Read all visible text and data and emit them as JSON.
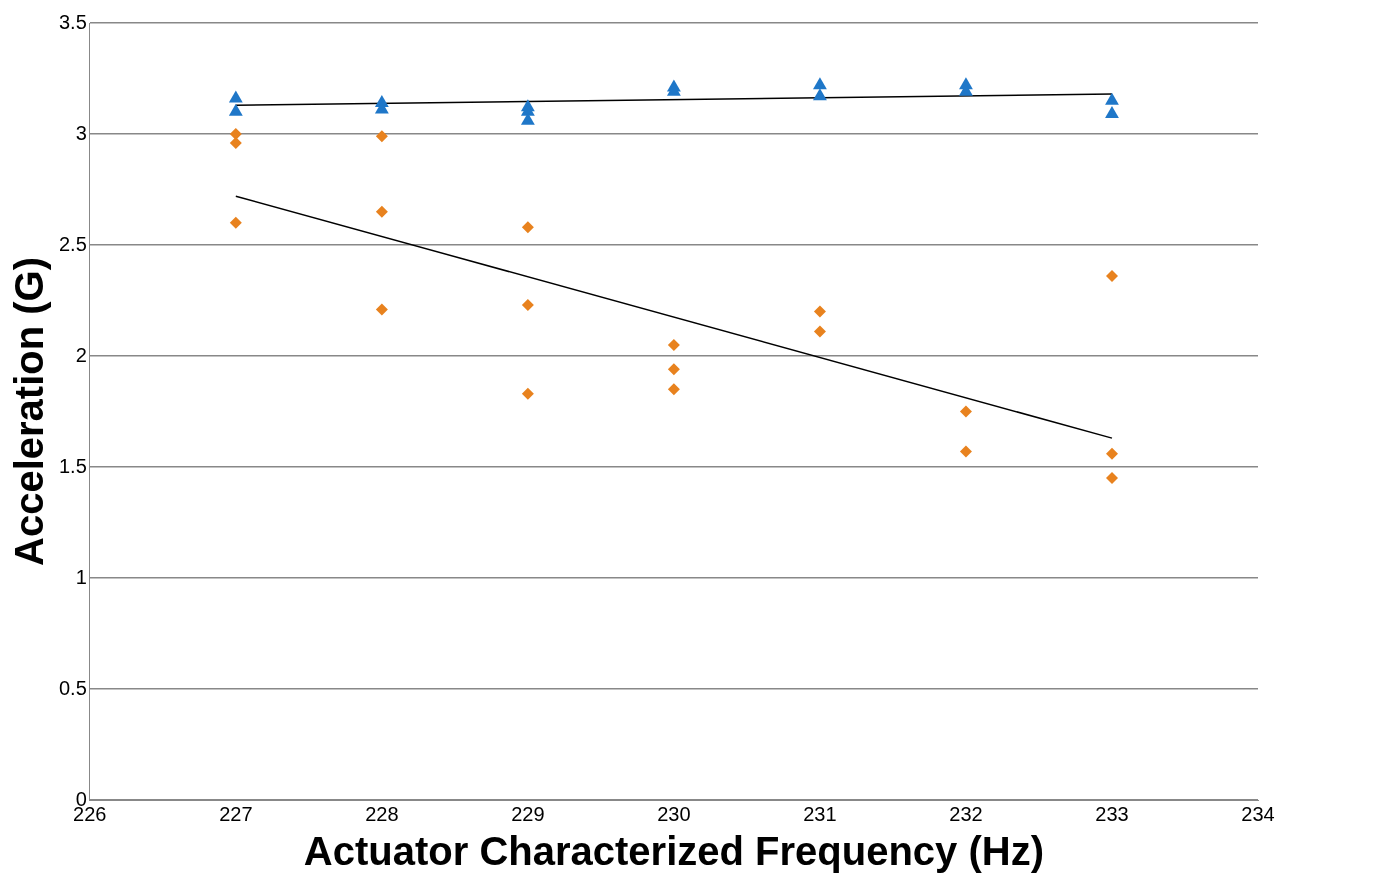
{
  "chart_data": {
    "type": "scatter",
    "xlabel": "Actuator Characterized Frequency (Hz)",
    "ylabel": "Acceleration (G)",
    "xlim": [
      226,
      234
    ],
    "xticks": [
      226,
      227,
      228,
      229,
      230,
      231,
      232,
      233,
      234
    ],
    "ylim": [
      0,
      3.5
    ],
    "yticks": [
      0,
      0.5,
      1,
      1.5,
      2,
      2.5,
      3,
      3.5
    ],
    "grid": "y",
    "series": [
      {
        "type": "scatter",
        "marker": "diamond",
        "color": "#e8821e",
        "x": [
          227,
          227,
          227,
          228,
          228,
          228,
          229,
          229,
          229,
          230,
          230,
          230,
          231,
          231,
          232,
          232,
          233,
          233,
          233
        ],
        "values": [
          3.0,
          2.96,
          2.6,
          2.99,
          2.65,
          2.21,
          2.58,
          2.23,
          1.83,
          2.05,
          1.94,
          1.85,
          2.2,
          2.11,
          1.75,
          1.57,
          2.36,
          1.56,
          1.45
        ]
      },
      {
        "type": "scatter",
        "marker": "triangle",
        "color": "#1f77c8",
        "x": [
          227,
          227,
          228,
          228,
          229,
          229,
          229,
          230,
          230,
          231,
          231,
          232,
          232,
          233,
          233
        ],
        "values": [
          3.16,
          3.1,
          3.14,
          3.11,
          3.12,
          3.1,
          3.06,
          3.21,
          3.19,
          3.22,
          3.17,
          3.22,
          3.19,
          3.15,
          3.09
        ]
      },
      {
        "type": "line",
        "marker": "none",
        "color": "#000000",
        "x": [
          227,
          233
        ],
        "values": [
          2.72,
          1.63
        ]
      },
      {
        "type": "line",
        "marker": "none",
        "color": "#000000",
        "x": [
          227,
          233
        ],
        "values": [
          3.13,
          3.18
        ]
      }
    ]
  }
}
